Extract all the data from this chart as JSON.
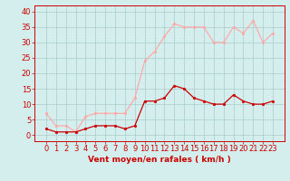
{
  "hours": [
    0,
    1,
    2,
    3,
    4,
    5,
    6,
    7,
    8,
    9,
    10,
    11,
    12,
    13,
    14,
    15,
    16,
    17,
    18,
    19,
    20,
    21,
    22,
    23
  ],
  "wind_mean": [
    2,
    1,
    1,
    1,
    2,
    3,
    3,
    3,
    2,
    3,
    11,
    11,
    12,
    16,
    15,
    12,
    11,
    10,
    10,
    13,
    11,
    10,
    10,
    11
  ],
  "wind_gust": [
    7,
    3,
    3,
    1,
    6,
    7,
    7,
    7,
    7,
    12,
    24,
    27,
    32,
    36,
    35,
    35,
    35,
    30,
    30,
    35,
    33,
    37,
    30,
    33
  ],
  "mean_color": "#cc0000",
  "gust_color": "#ffaaaa",
  "bg_color": "#d4eeee",
  "grid_color": "#aacccc",
  "axis_color": "#cc0000",
  "xlabel": "Vent moyen/en rafales ( km/h )",
  "ylim": [
    -2,
    42
  ],
  "yticks": [
    0,
    5,
    10,
    15,
    20,
    25,
    30,
    35,
    40
  ],
  "tick_fontsize": 6,
  "label_fontsize": 6.5
}
